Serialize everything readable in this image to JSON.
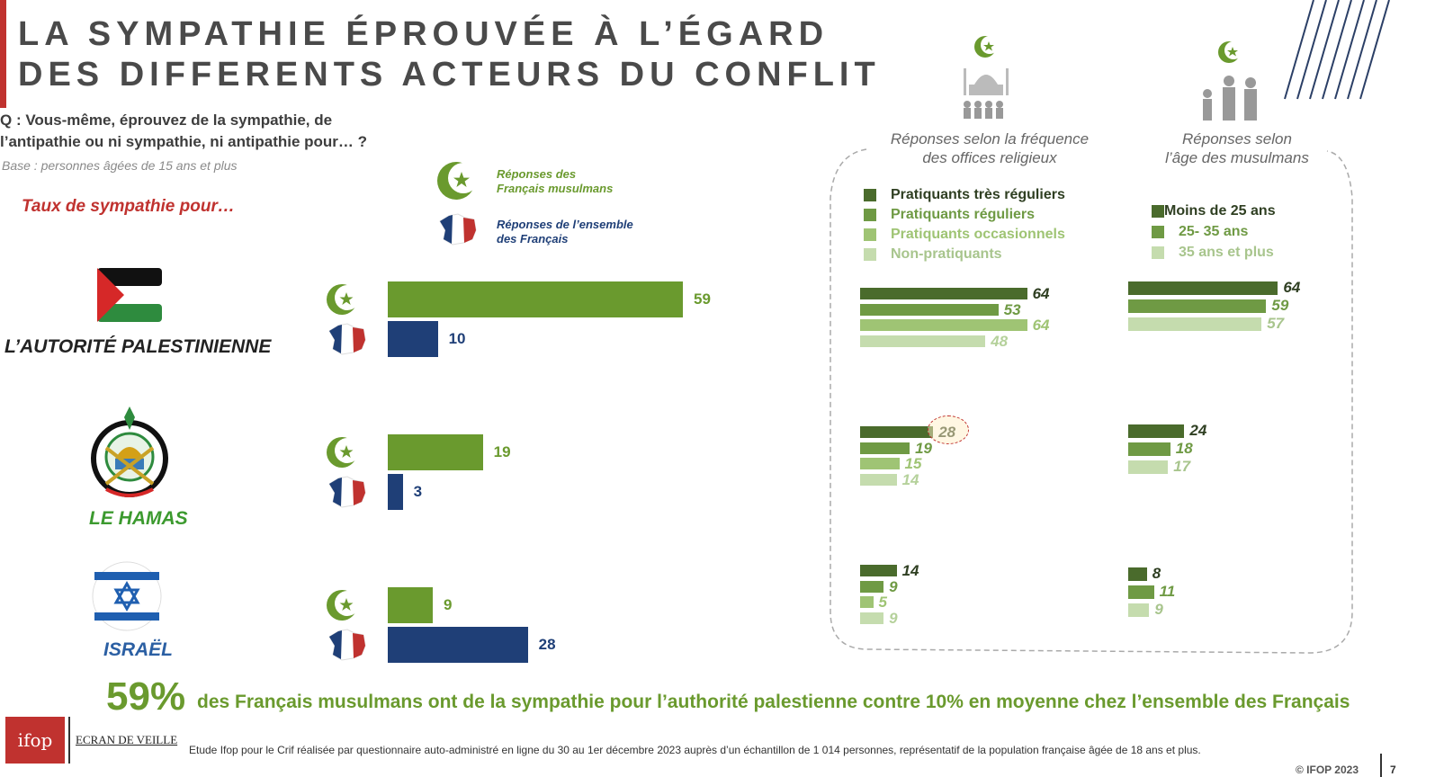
{
  "header": {
    "title_line1": "LA SYMPATHIE ÉPROUVÉE À L’ÉGARD",
    "title_line2": "DES DIFFERENTS ACTEURS DU CONFLIT",
    "question_line1": "Q : Vous-même, éprouvez de la sympathie, de",
    "question_line2": "l’antipathie ou ni sympathie, ni antipathie pour… ?",
    "base": "Base : personnes âgées de 15 ans et plus",
    "taux": "Taux de sympathie pour…"
  },
  "legend": {
    "muslims_line1": "Réponses des",
    "muslims_line2": "Français musulmans",
    "all_line1": "Réponses de l’ensemble",
    "all_line2": "des Français"
  },
  "side_headers": {
    "religious_line1": "Réponses selon la fréquence",
    "religious_line2": "des offices religieux",
    "age_line1": "Réponses selon",
    "age_line2": "l’âge des musulmans"
  },
  "religious_legend": [
    "Pratiquants très réguliers",
    "Pratiquants réguliers",
    "Pratiquants occasionnels",
    "Non-pratiquants"
  ],
  "age_legend": [
    "Moins de 25 ans",
    "25- 35 ans",
    "35 ans et plus"
  ],
  "colors": {
    "green": "#6a9a2e",
    "blue": "#1f3f77",
    "red": "#c0322f",
    "shade1": "#4a6b2c",
    "shade2": "#6f9a44",
    "shade3": "#9fc474",
    "shade4": "#c5dcae"
  },
  "chart_data": [
    {
      "type": "bar",
      "categories": [
        "L’AUTORITÉ PALESTINIENNE",
        "LE HAMAS",
        "ISRAËL"
      ],
      "series": [
        {
          "name": "Réponses des Français musulmans",
          "values": [
            59,
            19,
            9
          ]
        },
        {
          "name": "Réponses de l’ensemble des Français",
          "values": [
            10,
            3,
            28
          ]
        }
      ]
    },
    {
      "type": "bar",
      "categories": [
        "L’AUTORITÉ PALESTINIENNE",
        "LE HAMAS",
        "ISRAËL"
      ],
      "series": [
        {
          "name": "Pratiquants très réguliers",
          "values": [
            64,
            28,
            14
          ]
        },
        {
          "name": "Pratiquants réguliers",
          "values": [
            53,
            19,
            9
          ]
        },
        {
          "name": "Pratiquants occasionnels",
          "values": [
            64,
            15,
            5
          ]
        },
        {
          "name": "Non-pratiquants",
          "values": [
            48,
            14,
            9
          ]
        }
      ]
    },
    {
      "type": "bar",
      "categories": [
        "L’AUTORITÉ PALESTINIENNE",
        "LE HAMAS",
        "ISRAËL"
      ],
      "series": [
        {
          "name": "Moins de 25 ans",
          "values": [
            64,
            24,
            8
          ]
        },
        {
          "name": "25- 35 ans",
          "values": [
            59,
            18,
            11
          ]
        },
        {
          "name": "35 ans et plus",
          "values": [
            57,
            17,
            9
          ]
        }
      ]
    }
  ],
  "conclusion": {
    "number": "59%",
    "text": "des Français musulmans ont de la sympathie pour l’authorité palestienne contre 10% en moyenne chez l’ensemble des Français"
  },
  "footer": {
    "logo_ifop": "ifop",
    "logo_ecran": "ECRAN DE VEILLE",
    "note": "Etude Ifop pour le Crif réalisée par questionnaire auto-administré en ligne du 30 au 1er décembre 2023 auprès d’un échantillon de 1 014 personnes, représentatif de la population française âgée de 18 ans et plus.",
    "copyright": "© IFOP 2023",
    "page": "7"
  }
}
